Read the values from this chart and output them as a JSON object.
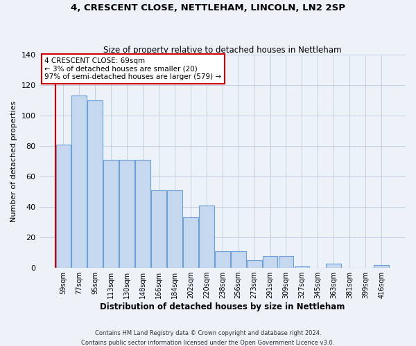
{
  "title": "4, CRESCENT CLOSE, NETTLEHAM, LINCOLN, LN2 2SP",
  "subtitle": "Size of property relative to detached houses in Nettleham",
  "xlabel": "Distribution of detached houses by size in Nettleham",
  "ylabel": "Number of detached properties",
  "categories": [
    "59sqm",
    "77sqm",
    "95sqm",
    "113sqm",
    "130sqm",
    "148sqm",
    "166sqm",
    "184sqm",
    "202sqm",
    "220sqm",
    "238sqm",
    "256sqm",
    "273sqm",
    "291sqm",
    "309sqm",
    "327sqm",
    "345sqm",
    "363sqm",
    "381sqm",
    "399sqm",
    "416sqm"
  ],
  "heights": [
    81,
    113,
    110,
    71,
    71,
    71,
    51,
    51,
    33,
    41,
    11,
    11,
    5,
    8,
    8,
    1,
    0,
    3,
    0,
    0,
    2
  ],
  "bar_fill": "#c5d8ef",
  "bar_edge": "#6a9fd8",
  "red_line_color": "#cc0000",
  "annotation_text": "4 CRESCENT CLOSE: 69sqm\n← 3% of detached houses are smaller (20)\n97% of semi-detached houses are larger (579) →",
  "annotation_box_fc": "#ffffff",
  "annotation_box_ec": "#cc0000",
  "bg_color": "#edf1f8",
  "grid_color": "#c5cfe0",
  "ylim": [
    0,
    140
  ],
  "yticks": [
    0,
    20,
    40,
    60,
    80,
    100,
    120,
    140
  ],
  "footer_line1": "Contains HM Land Registry data © Crown copyright and database right 2024.",
  "footer_line2": "Contains public sector information licensed under the Open Government Licence v3.0."
}
